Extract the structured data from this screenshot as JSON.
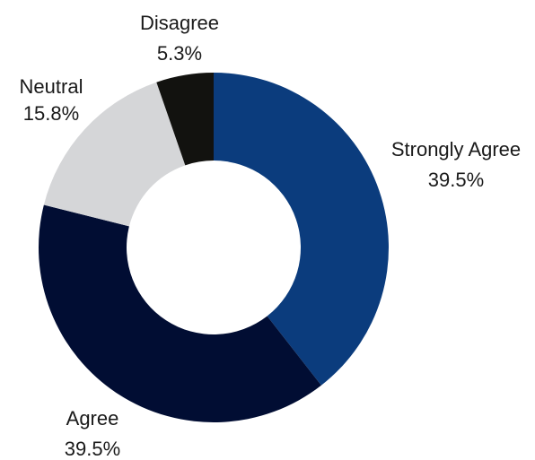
{
  "chart_data": {
    "type": "pie",
    "donut": true,
    "title": "",
    "legend": "none",
    "slices": [
      {
        "label": "Strongly Agree",
        "value": 39.5,
        "display": "39.5%",
        "color": "#0b3c7d"
      },
      {
        "label": "Agree",
        "value": 39.5,
        "display": "39.5%",
        "color": "#010d33"
      },
      {
        "label": "Neutral",
        "value": 15.8,
        "display": "15.8%",
        "color": "#d5d6d8"
      },
      {
        "label": "Disagree",
        "value": 5.3,
        "display": "5.3%",
        "color": "#12120f"
      }
    ]
  }
}
